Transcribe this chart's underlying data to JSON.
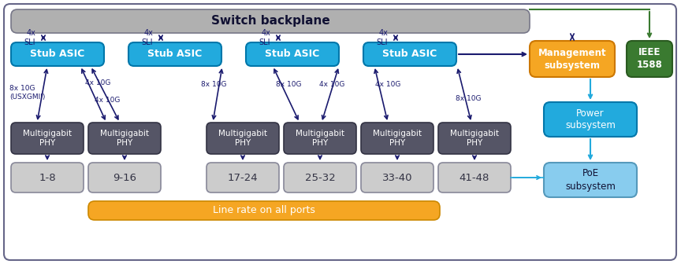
{
  "bg_color": "#ffffff",
  "outer_border_color": "#666688",
  "backplane_color": "#b0b0b0",
  "backplane_text": "Switch backplane",
  "backplane_text_color": "#111133",
  "stub_color": "#22aadd",
  "stub_edge_color": "#0077aa",
  "stub_text_color": "#ffffff",
  "stub_labels": [
    "Stub ASIC",
    "Stub ASIC",
    "Stub ASIC",
    "Stub ASIC"
  ],
  "phy_color": "#555566",
  "phy_edge_color": "#333344",
  "phy_text_color": "#ffffff",
  "phy_labels": [
    "Multigigabit\nPHY",
    "Multigigabit\nPHY",
    "Multigigabit\nPHY",
    "Multigigabit\nPHY",
    "Multigigabit\nPHY",
    "Multigigabit\nPHY"
  ],
  "port_color": "#cccccc",
  "port_edge_color": "#888899",
  "port_text_color": "#333344",
  "port_labels": [
    "1-8",
    "9-16",
    "17-24",
    "25-32",
    "33-40",
    "41-48"
  ],
  "linerate_color": "#f5a623",
  "linerate_edge_color": "#cc8800",
  "linerate_text": "Line rate on all ports",
  "linerate_text_color": "#ffffff",
  "mgmt_color": "#f5a623",
  "mgmt_edge_color": "#cc7700",
  "mgmt_text": "Management\nsubsystem",
  "mgmt_text_color": "#ffffff",
  "ieee_color": "#3a7a30",
  "ieee_edge_color": "#2a5a20",
  "ieee_text": "IEEE\n1588",
  "ieee_text_color": "#ffffff",
  "power_color": "#22aadd",
  "power_edge_color": "#0077aa",
  "power_text": "Power\nsubsystem",
  "power_text_color": "#ffffff",
  "poe_color": "#88ccee",
  "poe_edge_color": "#5599bb",
  "poe_text": "PoE\nsubsystem",
  "poe_text_color": "#111133",
  "dark_arrow": "#1a1a6e",
  "cyan_arrow": "#22aadd",
  "green_arrow": "#3a7a30"
}
